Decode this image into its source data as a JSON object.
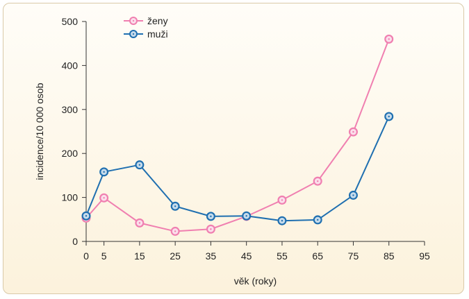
{
  "chart_data": {
    "type": "line",
    "xlabel": "věk (roky)",
    "ylabel": "incidence/10 000 osob",
    "xlim": [
      0,
      95
    ],
    "ylim": [
      0,
      500
    ],
    "xticks": [
      "0",
      "5",
      "15",
      "25",
      "35",
      "45",
      "55",
      "65",
      "75",
      "85",
      "95"
    ],
    "yticks": [
      "0",
      "100",
      "200",
      "300",
      "400",
      "500"
    ],
    "grid": false,
    "legend_position": "top-left",
    "series": [
      {
        "name": "ženy",
        "color": "#f07fb0",
        "x": [
          "0",
          "5",
          "15",
          "25",
          "35",
          "45",
          "55",
          "65",
          "75",
          "85"
        ],
        "values": [
          53,
          99,
          42,
          23,
          28,
          57,
          94,
          137,
          249,
          460
        ]
      },
      {
        "name": "muži",
        "color": "#1f6fb0",
        "x": [
          "0",
          "5",
          "15",
          "25",
          "35",
          "45",
          "55",
          "65",
          "75",
          "85"
        ],
        "values": [
          58,
          158,
          174,
          80,
          57,
          58,
          47,
          49,
          105,
          284
        ]
      }
    ]
  }
}
